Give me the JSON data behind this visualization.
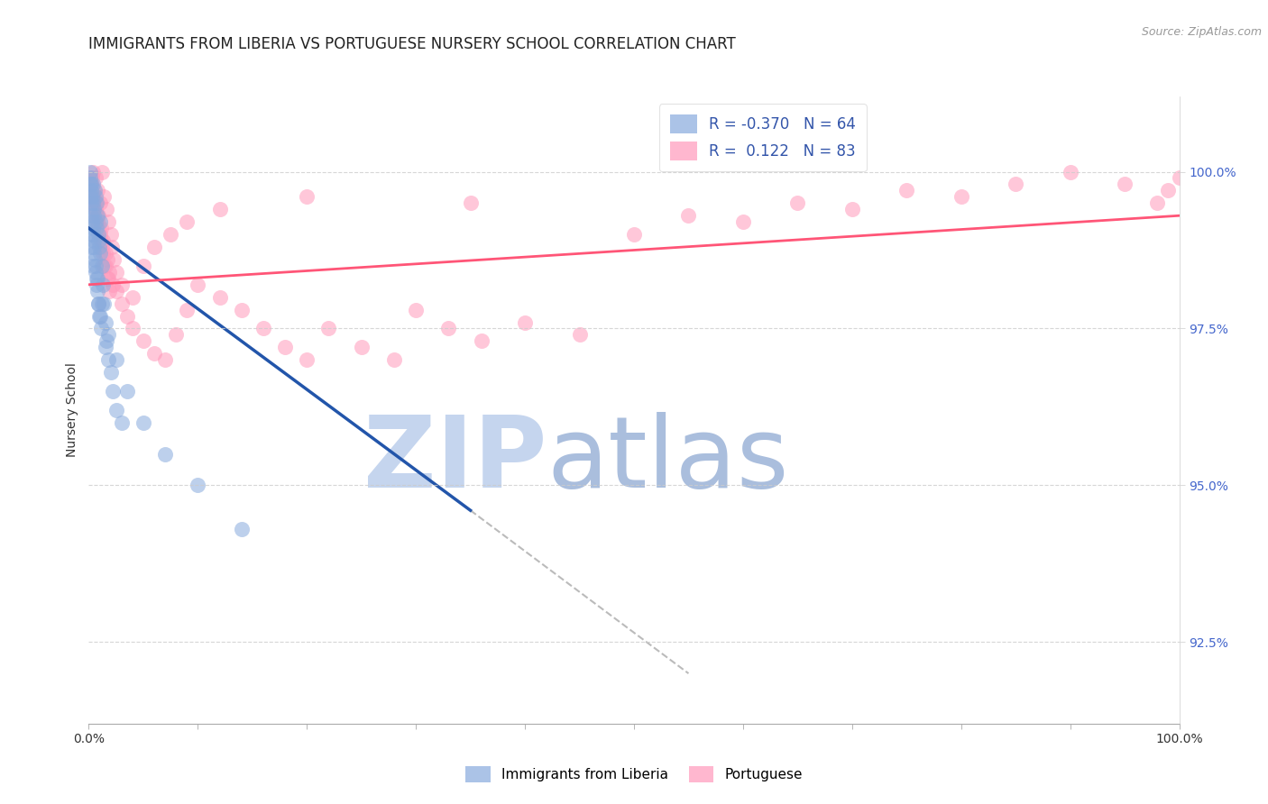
{
  "title": "IMMIGRANTS FROM LIBERIA VS PORTUGUESE NURSERY SCHOOL CORRELATION CHART",
  "source": "Source: ZipAtlas.com",
  "ylabel": "Nursery School",
  "xmin": 0.0,
  "xmax": 100.0,
  "ymin": 91.2,
  "ymax": 101.2,
  "yticks": [
    92.5,
    95.0,
    97.5,
    100.0
  ],
  "xtick_labels": [
    "0.0%",
    "100.0%"
  ],
  "xtick_pos": [
    0.0,
    100.0
  ],
  "blue_R": -0.37,
  "blue_N": 64,
  "pink_R": 0.122,
  "pink_N": 83,
  "blue_color": "#88AADD",
  "pink_color": "#FF99BB",
  "blue_line_color": "#2255AA",
  "pink_line_color": "#FF5577",
  "dash_color": "#BBBBBB",
  "blue_scatter_x": [
    0.1,
    0.15,
    0.2,
    0.25,
    0.3,
    0.35,
    0.4,
    0.45,
    0.5,
    0.55,
    0.6,
    0.65,
    0.7,
    0.75,
    0.8,
    0.85,
    0.9,
    0.95,
    1.0,
    1.05,
    0.1,
    0.2,
    0.3,
    0.4,
    0.5,
    0.6,
    0.7,
    0.8,
    0.9,
    1.0,
    0.15,
    0.25,
    0.35,
    0.45,
    0.55,
    0.65,
    0.75,
    0.85,
    0.95,
    1.1,
    1.2,
    1.3,
    1.4,
    1.5,
    1.6,
    1.8,
    2.0,
    2.2,
    2.5,
    3.0,
    0.3,
    0.5,
    0.8,
    1.2,
    1.8,
    2.5,
    3.5,
    5.0,
    7.0,
    10.0,
    0.2,
    0.4,
    1.5,
    14.0
  ],
  "blue_scatter_y": [
    100.0,
    99.9,
    99.8,
    99.7,
    99.6,
    99.8,
    99.5,
    99.4,
    99.3,
    99.7,
    99.6,
    99.2,
    99.5,
    99.1,
    99.3,
    99.0,
    98.9,
    98.8,
    98.7,
    99.2,
    99.8,
    99.5,
    99.2,
    99.0,
    98.8,
    98.5,
    98.3,
    98.1,
    97.9,
    97.7,
    99.6,
    99.3,
    99.1,
    98.9,
    98.6,
    98.4,
    98.2,
    97.9,
    97.7,
    97.5,
    98.5,
    98.2,
    97.9,
    97.6,
    97.3,
    97.0,
    96.8,
    96.5,
    96.2,
    96.0,
    99.0,
    98.7,
    98.3,
    97.9,
    97.4,
    97.0,
    96.5,
    96.0,
    95.5,
    95.0,
    98.8,
    98.5,
    97.2,
    94.3
  ],
  "pink_scatter_x": [
    0.2,
    0.4,
    0.6,
    0.8,
    1.0,
    1.2,
    1.4,
    1.6,
    1.8,
    2.0,
    0.3,
    0.5,
    0.7,
    0.9,
    1.1,
    1.3,
    1.5,
    1.7,
    1.9,
    2.2,
    0.4,
    0.6,
    0.8,
    1.0,
    1.2,
    1.4,
    1.8,
    2.5,
    3.0,
    3.5,
    4.0,
    5.0,
    6.0,
    7.0,
    8.0,
    9.0,
    10.0,
    12.0,
    14.0,
    16.0,
    18.0,
    20.0,
    22.0,
    25.0,
    28.0,
    30.0,
    33.0,
    36.0,
    40.0,
    45.0,
    0.5,
    0.7,
    0.9,
    1.1,
    1.3,
    1.5,
    1.7,
    1.9,
    2.1,
    2.3,
    2.5,
    3.0,
    4.0,
    5.0,
    6.0,
    7.5,
    9.0,
    12.0,
    20.0,
    35.0,
    50.0,
    60.0,
    70.0,
    80.0,
    85.0,
    90.0,
    95.0,
    98.0,
    99.0,
    100.0,
    55.0,
    65.0,
    75.0
  ],
  "pink_scatter_y": [
    99.8,
    100.0,
    99.9,
    99.7,
    99.5,
    100.0,
    99.6,
    99.4,
    99.2,
    99.0,
    99.9,
    99.7,
    99.5,
    99.3,
    99.1,
    98.9,
    98.7,
    98.6,
    98.4,
    98.2,
    99.6,
    99.4,
    99.2,
    99.0,
    98.8,
    98.5,
    98.3,
    98.1,
    97.9,
    97.7,
    97.5,
    97.3,
    97.1,
    97.0,
    97.4,
    97.8,
    98.2,
    98.0,
    97.8,
    97.5,
    97.2,
    97.0,
    97.5,
    97.2,
    97.0,
    97.8,
    97.5,
    97.3,
    97.6,
    97.4,
    99.5,
    99.3,
    99.1,
    98.9,
    98.7,
    98.5,
    98.3,
    98.1,
    98.8,
    98.6,
    98.4,
    98.2,
    98.0,
    98.5,
    98.8,
    99.0,
    99.2,
    99.4,
    99.6,
    99.5,
    99.0,
    99.2,
    99.4,
    99.6,
    99.8,
    100.0,
    99.8,
    99.5,
    99.7,
    99.9,
    99.3,
    99.5,
    99.7
  ],
  "legend_entries": [
    {
      "label": "R = -0.370   N = 64",
      "color": "#88AADD"
    },
    {
      "label": "R =  0.122   N = 83",
      "color": "#FF99BB"
    }
  ],
  "bottom_legend": [
    {
      "label": "Immigrants from Liberia",
      "color": "#88AADD"
    },
    {
      "label": "Portuguese",
      "color": "#FF99BB"
    }
  ],
  "watermark_zip": "ZIP",
  "watermark_atlas": "atlas",
  "watermark_color_zip": "#C5D5EE",
  "watermark_color_atlas": "#AABEDD",
  "grid_color": "#CCCCCC",
  "title_fontsize": 12,
  "axis_label_fontsize": 10,
  "tick_fontsize": 10,
  "blue_line_x0": 0.0,
  "blue_line_y0": 99.1,
  "blue_line_x1": 35.0,
  "blue_line_y1": 94.6,
  "blue_dash_x1": 55.0,
  "blue_dash_y1": 92.0,
  "pink_line_x0": 0.0,
  "pink_line_y0": 98.2,
  "pink_line_x1": 100.0,
  "pink_line_y1": 99.3
}
